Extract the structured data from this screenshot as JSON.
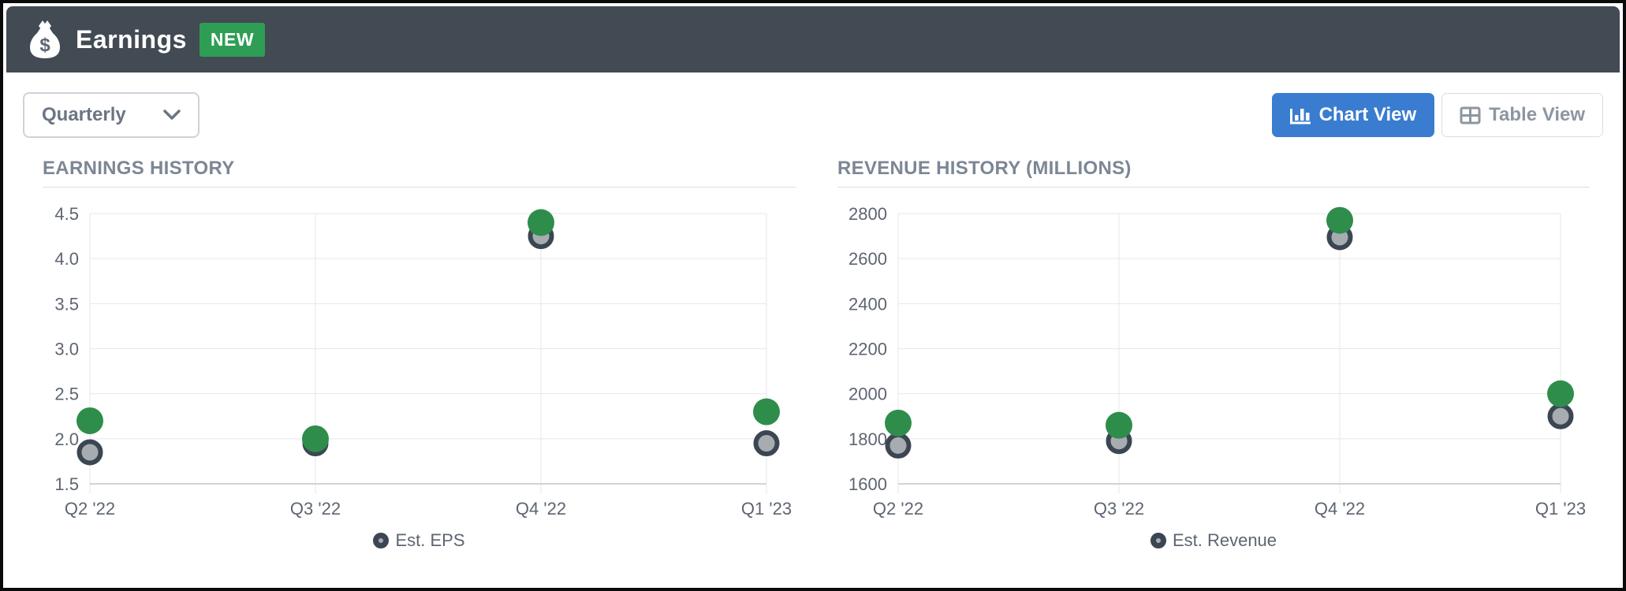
{
  "header": {
    "title": "Earnings",
    "badge": "NEW",
    "icon": "money-bag-icon"
  },
  "toolbar": {
    "period_select": {
      "value": "Quarterly"
    },
    "chart_view_label": "Chart View",
    "table_view_label": "Table View"
  },
  "colors": {
    "header_bg": "#424a54",
    "badge_green": "#2f9e55",
    "primary_blue": "#3a7cd0",
    "actual_green": "#2e8d4b",
    "estimate_gray": "#a7acb1",
    "estimate_ring": "#3c4653"
  },
  "chart_data": [
    {
      "type": "scatter",
      "title": "EARNINGS HISTORY",
      "categories": [
        "Q2 '22",
        "Q3 '22",
        "Q4 '22",
        "Q1 '23"
      ],
      "series": [
        {
          "name": "EPS",
          "role": "actual",
          "color": "#2e8d4b",
          "values": [
            2.2,
            2.0,
            4.4,
            2.3
          ]
        },
        {
          "name": "Est. EPS",
          "role": "estimate",
          "color": "#a7acb1",
          "ring": "#3c4653",
          "values": [
            1.85,
            1.95,
            4.25,
            1.95
          ]
        }
      ],
      "ylim": [
        1.5,
        4.5
      ],
      "yticks": [
        1.5,
        2.0,
        2.5,
        3.0,
        3.5,
        4.0,
        4.5
      ],
      "ytick_labels": [
        "1.5",
        "2.0",
        "2.5",
        "3.0",
        "3.5",
        "4.0",
        "4.5"
      ],
      "legend": "Est. EPS",
      "grid": true,
      "legend_position": "bottom-center"
    },
    {
      "type": "scatter",
      "title": "REVENUE HISTORY (MILLIONS)",
      "categories": [
        "Q2 '22",
        "Q3 '22",
        "Q4 '22",
        "Q1 '23"
      ],
      "series": [
        {
          "name": "Revenue",
          "role": "actual",
          "color": "#2e8d4b",
          "values": [
            1870,
            1860,
            2770,
            2000
          ]
        },
        {
          "name": "Est. Revenue",
          "role": "estimate",
          "color": "#a7acb1",
          "ring": "#3c4653",
          "values": [
            1770,
            1790,
            2695,
            1900
          ]
        }
      ],
      "ylim": [
        1600,
        2800
      ],
      "yticks": [
        1600,
        1800,
        2000,
        2200,
        2400,
        2600,
        2800
      ],
      "ytick_labels": [
        "1600",
        "1800",
        "2000",
        "2200",
        "2400",
        "2600",
        "2800"
      ],
      "legend": "Est. Revenue",
      "grid": true,
      "legend_position": "bottom-center"
    }
  ]
}
